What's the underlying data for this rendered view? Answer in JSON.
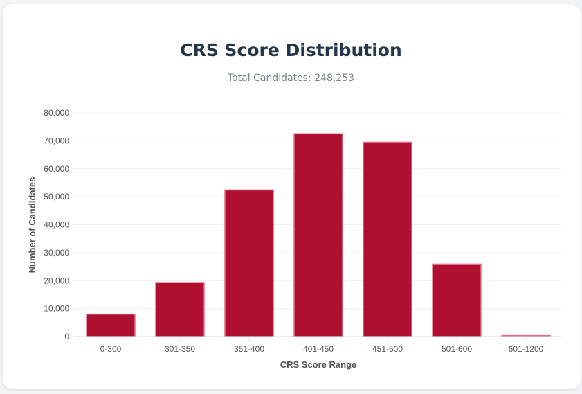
{
  "header": {
    "title": "CRS Score Distribution",
    "subtitle": "Total Candidates: 248,253"
  },
  "chart_data": {
    "type": "bar",
    "title": "CRS Score Distribution",
    "subtitle": "Total Candidates: 248,253",
    "categories": [
      "0-300",
      "301-350",
      "351-400",
      "401-450",
      "451-500",
      "501-600",
      "601-1200"
    ],
    "values": [
      8000,
      19300,
      52400,
      72500,
      69500,
      25900,
      350
    ],
    "xlabel": "CRS Score Range",
    "ylabel": "Number of Candidates",
    "ylim": [
      0,
      80000
    ],
    "yticks": [
      0,
      10000,
      20000,
      30000,
      40000,
      50000,
      60000,
      70000,
      80000
    ],
    "ytick_labels": [
      "0",
      "10,000",
      "20,000",
      "30,000",
      "40,000",
      "50,000",
      "60,000",
      "70,000",
      "80,000"
    ],
    "grid": true,
    "legend": "none"
  },
  "colors": {
    "bar": "#b01030",
    "bar_border": "#e0708a",
    "grid": "#efefef",
    "axis": "#d8d8d8"
  }
}
